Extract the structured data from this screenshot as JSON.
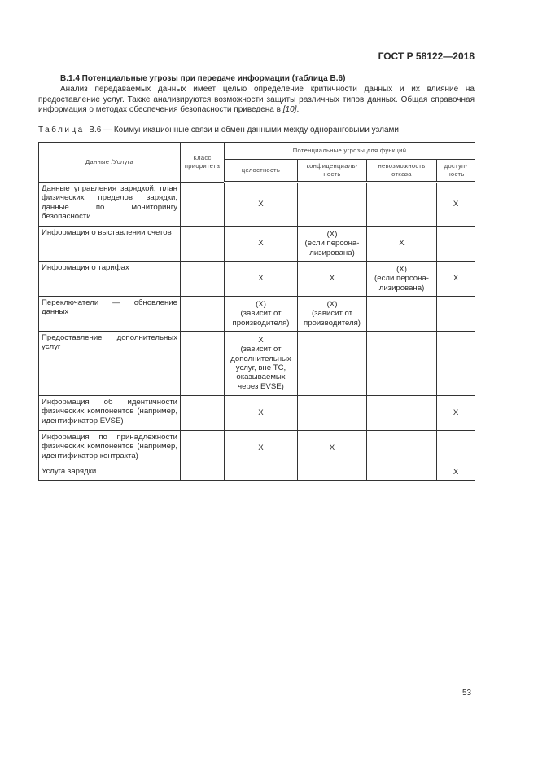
{
  "header": {
    "doc_id": "ГОСТ Р 58122—2018"
  },
  "section": {
    "title": "В.1.4  Потенциальные угрозы при передаче информации (таблица В.6)",
    "paragraph": "Анализ передаваемых данных имеет целью определение критичности данных и их влияние на предоставление услуг. Также анализируются возможности защиты различных типов данных. Общая справочная информация о методах обеспечения безопасности приведена в ",
    "reference": "[10]",
    "paragraph_end": "."
  },
  "caption": {
    "label": "Таблица",
    "text": "  В.6 — Коммуникационные связи и обмен данными между одноранговыми узлами"
  },
  "table": {
    "headers": {
      "data": "Данные /Услуга",
      "priority": "Класс\nприоритета",
      "threats": "Потенциальные угрозы для функций",
      "sub": [
        "целостность",
        "конфиденциаль-\nность",
        "невозможность\nотказа",
        "доступ-\nность"
      ]
    },
    "rows": [
      {
        "name": "Данные управления зарядкой, план физических пределов зарядки, данные по мониторингу безопасности",
        "priority": "",
        "cells": [
          "X",
          "",
          "",
          "X"
        ]
      },
      {
        "name": "Информация о выставлении счетов",
        "priority": "",
        "cells": [
          "X",
          "(X)\n(если персона-\nлизирована)",
          "X",
          ""
        ]
      },
      {
        "name": "Информация о тарифах",
        "priority": "",
        "cells": [
          "X",
          "X",
          "(X)\n(если персона-\nлизирована)",
          "X"
        ]
      },
      {
        "name": "Переключатели — обновление данных",
        "priority": "",
        "cells": [
          "(X)\n(зависит от\nпроизводителя)",
          "(X)\n(зависит от\nпроизводителя)",
          "",
          ""
        ]
      },
      {
        "name": "Предоставление дополнительных услуг",
        "priority": "",
        "cells": [
          "X\n(зависит от\nдополнительных\nуслуг, вне ТС,\nоказываемых\nчерез EVSE)",
          "",
          "",
          ""
        ]
      },
      {
        "name": "Информация об идентичности физических компонентов (например, идентификатор EVSE)",
        "priority": "",
        "cells": [
          "X",
          "",
          "",
          "X"
        ]
      },
      {
        "name": "Информация по принадлежности физических компонентов (например, идентификатор контракта)",
        "priority": "",
        "cells": [
          "X",
          "X",
          "",
          ""
        ]
      },
      {
        "name": "Услуга зарядки",
        "priority": "",
        "cells": [
          "",
          "",
          "",
          "X"
        ]
      }
    ]
  },
  "footer": {
    "page_number": "53"
  }
}
